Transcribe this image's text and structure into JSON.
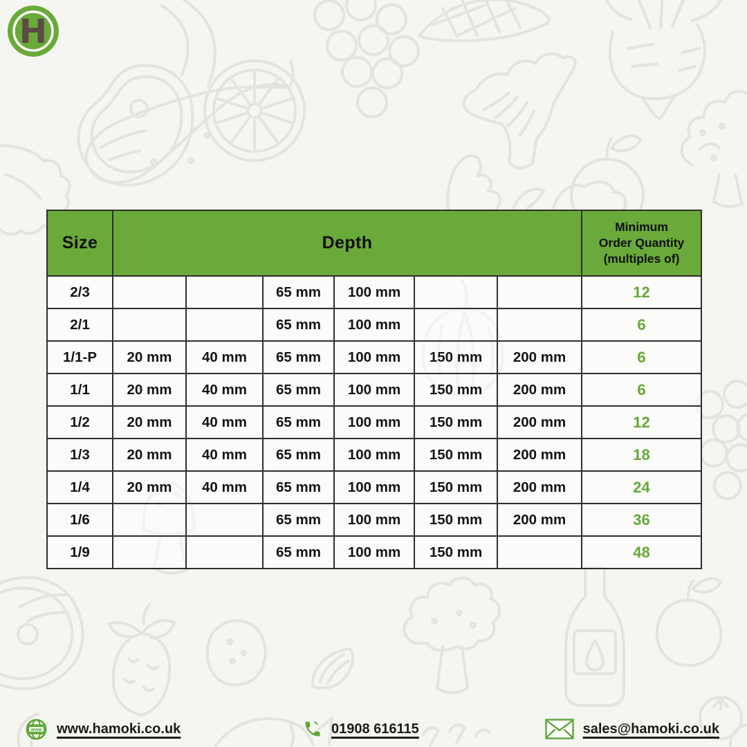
{
  "colors": {
    "accent_green": "#6aaa3a",
    "moq_green": "#64a838",
    "border": "#2e2e2e",
    "logo_h": "#5d4b44",
    "pattern_gray": "#e3e4df",
    "background": "#f5f6f2"
  },
  "logo": {
    "letter": "H"
  },
  "table": {
    "header": {
      "size": "Size",
      "depth": "Depth",
      "moq_lines": [
        "Minimum",
        "Order Quantity",
        "(multiples of)"
      ]
    },
    "rows": [
      {
        "size": "2/3",
        "depths": [
          "",
          "",
          "65 mm",
          "100 mm",
          "",
          ""
        ],
        "moq": "12"
      },
      {
        "size": "2/1",
        "depths": [
          "",
          "",
          "65 mm",
          "100 mm",
          "",
          ""
        ],
        "moq": "6"
      },
      {
        "size": "1/1-P",
        "depths": [
          "20 mm",
          "40 mm",
          "65 mm",
          "100 mm",
          "150 mm",
          "200 mm"
        ],
        "moq": "6"
      },
      {
        "size": "1/1",
        "depths": [
          "20 mm",
          "40 mm",
          "65 mm",
          "100 mm",
          "150 mm",
          "200 mm"
        ],
        "moq": "6"
      },
      {
        "size": "1/2",
        "depths": [
          "20 mm",
          "40 mm",
          "65 mm",
          "100 mm",
          "150 mm",
          "200 mm"
        ],
        "moq": "12"
      },
      {
        "size": "1/3",
        "depths": [
          "20 mm",
          "40 mm",
          "65 mm",
          "100 mm",
          "150 mm",
          "200 mm"
        ],
        "moq": "18"
      },
      {
        "size": "1/4",
        "depths": [
          "20 mm",
          "40 mm",
          "65 mm",
          "100 mm",
          "150 mm",
          "200 mm"
        ],
        "moq": "24"
      },
      {
        "size": "1/6",
        "depths": [
          "",
          "",
          "65 mm",
          "100 mm",
          "150 mm",
          "200 mm"
        ],
        "moq": "36"
      },
      {
        "size": "1/9",
        "depths": [
          "",
          "",
          "65 mm",
          "100 mm",
          "150 mm",
          ""
        ],
        "moq": "48"
      }
    ]
  },
  "footer": {
    "globe_text": "www",
    "website": "www.hamoki.co.uk",
    "phone": "01908 616115",
    "email": "sales@hamoki.co.uk"
  }
}
